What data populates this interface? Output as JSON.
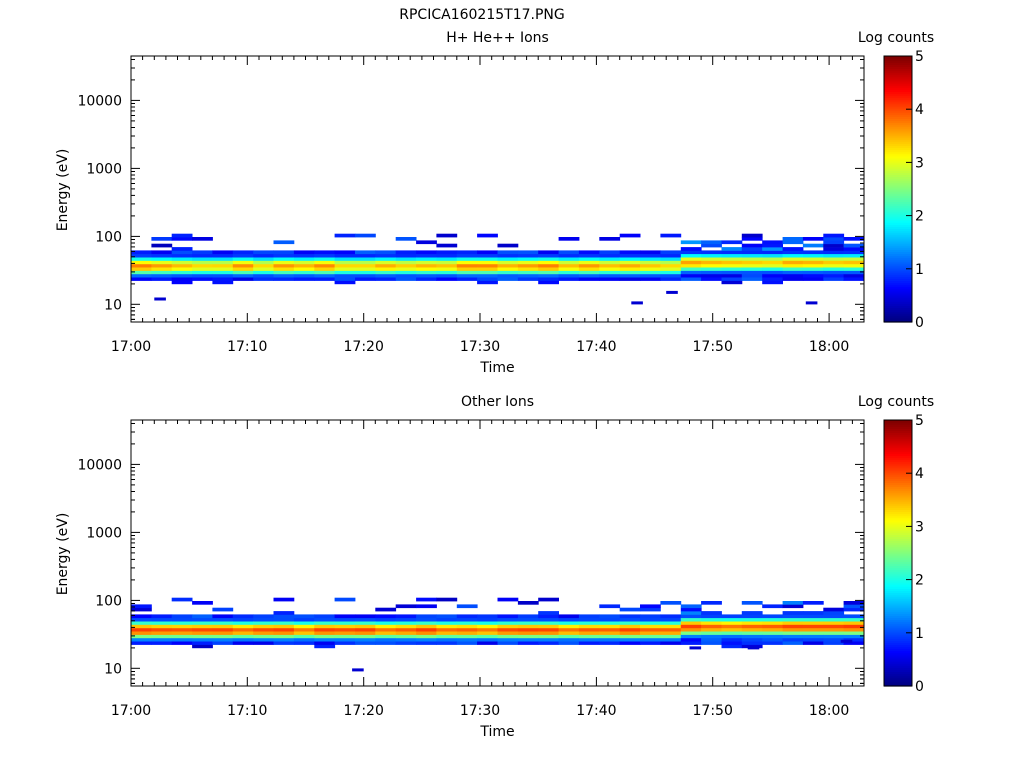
{
  "page_title": "RPCICA160215T17.PNG",
  "chart_data": [
    {
      "type": "heatmap",
      "title": "H+ He++ Ions",
      "xlabel": "Time",
      "ylabel": "Energy (eV)",
      "x_ticks": [
        "17:00",
        "17:10",
        "17:20",
        "17:30",
        "17:40",
        "17:50",
        "18:00"
      ],
      "x_range": [
        "17:00",
        "18:03"
      ],
      "y_scale": "log",
      "y_ticks": [
        "10",
        "100",
        "1000",
        "10000"
      ],
      "y_range": [
        5.5,
        45000
      ],
      "colorbar": {
        "label": "Log counts",
        "ticks": [
          "0",
          "1",
          "2",
          "3",
          "4",
          "5"
        ],
        "range": [
          0,
          5
        ]
      },
      "band": {
        "core_energy_eV": [
          30,
          45
        ],
        "peak_log_counts": [
          3.3,
          3.8
        ],
        "fringe_energy_eV": [
          22,
          60
        ],
        "sparse_hits_energy_eV": [
          60,
          100
        ],
        "dense_sparse_hits_after": "17:47"
      },
      "isolated_hits": [
        {
          "time": "17:02",
          "energy_eV": 12,
          "log_counts": 0.4
        },
        {
          "time": "17:43",
          "energy_eV": 10.5,
          "log_counts": 0.4
        },
        {
          "time": "17:46",
          "energy_eV": 15,
          "log_counts": 0.4
        },
        {
          "time": "17:58",
          "energy_eV": 10.5,
          "log_counts": 0.4
        }
      ]
    },
    {
      "type": "heatmap",
      "title": "Other Ions",
      "xlabel": "Time",
      "ylabel": "Energy (eV)",
      "x_ticks": [
        "17:00",
        "17:10",
        "17:20",
        "17:30",
        "17:40",
        "17:50",
        "18:00"
      ],
      "x_range": [
        "17:00",
        "18:03"
      ],
      "y_scale": "log",
      "y_ticks": [
        "10",
        "100",
        "1000",
        "10000"
      ],
      "y_range": [
        5.5,
        45000
      ],
      "colorbar": {
        "label": "Log counts",
        "ticks": [
          "0",
          "1",
          "2",
          "3",
          "4",
          "5"
        ],
        "range": [
          0,
          5
        ]
      },
      "band": {
        "core_energy_eV": [
          30,
          45
        ],
        "peak_log_counts": [
          3.8,
          4.1
        ],
        "fringe_energy_eV": [
          22,
          60
        ],
        "sparse_hits_energy_eV": [
          60,
          100
        ],
        "dense_sparse_hits_after": "17:47"
      },
      "isolated_hits": [
        {
          "time": "17:19",
          "energy_eV": 9.5,
          "log_counts": 0.4
        },
        {
          "time": "17:48",
          "energy_eV": 20,
          "log_counts": 0.4
        },
        {
          "time": "17:53",
          "energy_eV": 20,
          "log_counts": 0.4
        },
        {
          "time": "18:01",
          "energy_eV": 25,
          "log_counts": 0.4
        }
      ]
    }
  ]
}
